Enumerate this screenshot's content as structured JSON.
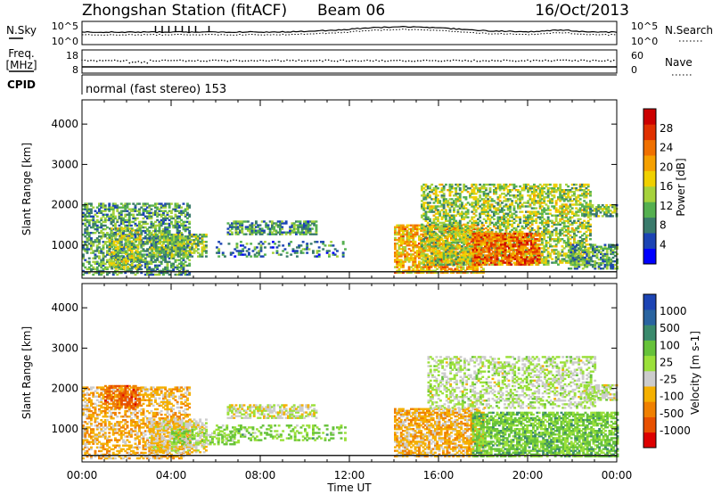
{
  "header": {
    "station": "Zhongshan Station (fitACF)",
    "beam": "Beam 06",
    "date": "16/Oct/2013"
  },
  "summary_panels": {
    "nsky_label": "N.Sky",
    "nsearch_label": "N.Search",
    "noise_ticks": [
      "10^5",
      "10^0"
    ],
    "freq_label": "Freq.",
    "freq_unit": "[MHz]",
    "freq_ticks": [
      "18",
      "8"
    ],
    "nave_label": "Nave",
    "nave_ticks": [
      "60",
      "0"
    ],
    "cpid_label": "CPID",
    "cpid_value": "normal (fast stereo) 153"
  },
  "axes": {
    "y_label": "Slant Range [km]",
    "y_ticks": [
      "4000",
      "3000",
      "2000",
      "1000"
    ],
    "x_label": "Time UT",
    "x_ticks": [
      "00:00",
      "04:00",
      "08:00",
      "12:00",
      "16:00",
      "20:00",
      "00:00"
    ]
  },
  "colors": {
    "power_scale": [
      "#0000ff",
      "#1c44b4",
      "#3a7b6c",
      "#55b050",
      "#a6d23c",
      "#f0d000",
      "#f5a000",
      "#f07000",
      "#e03000",
      "#cc0000"
    ],
    "velocity_scale": [
      "#1c44b4",
      "#2a64a0",
      "#3a8a6c",
      "#66c23a",
      "#9be03a",
      "#cccccc",
      "#f5b000",
      "#f08000",
      "#e85000",
      "#dd0000"
    ]
  },
  "chart_data": [
    {
      "type": "heatmap",
      "quantity": "Power",
      "colorbar_label": "Power [dB]",
      "colorbar_ticks": [
        "28",
        "24",
        "20",
        "16",
        "12",
        "8",
        "4"
      ],
      "range_min": 0,
      "range_max": 32,
      "xlim": [
        "00:00",
        "24:00"
      ],
      "ylim": [
        180,
        4600
      ],
      "time_unit": "hours UT",
      "regions": [
        {
          "t0": 0.0,
          "t1": 4.8,
          "r0": 250,
          "r1": 2050,
          "level": 10,
          "density": 0.55
        },
        {
          "t0": 1.2,
          "t1": 2.6,
          "r0": 400,
          "r1": 1400,
          "level": 14,
          "density": 0.6
        },
        {
          "t0": 3.0,
          "t1": 5.6,
          "r0": 700,
          "r1": 1250,
          "level": 12,
          "density": 0.7
        },
        {
          "t0": 6.5,
          "t1": 10.5,
          "r0": 1250,
          "r1": 1600,
          "level": 9,
          "density": 0.65
        },
        {
          "t0": 6.0,
          "t1": 11.8,
          "r0": 700,
          "r1": 1100,
          "level": 8,
          "density": 0.25
        },
        {
          "t0": 14.0,
          "t1": 18.0,
          "r0": 300,
          "r1": 1500,
          "level": 20,
          "density": 0.7
        },
        {
          "t0": 15.2,
          "t1": 22.8,
          "r0": 500,
          "r1": 2500,
          "level": 14,
          "density": 0.55
        },
        {
          "t0": 17.5,
          "t1": 20.5,
          "r0": 500,
          "r1": 1300,
          "level": 24,
          "density": 0.75
        },
        {
          "t0": 21.8,
          "t1": 24.0,
          "r0": 400,
          "r1": 1000,
          "level": 10,
          "density": 0.6
        },
        {
          "t0": 22.5,
          "t1": 24.0,
          "r0": 1700,
          "r1": 2000,
          "level": 12,
          "density": 0.7
        }
      ]
    },
    {
      "type": "heatmap",
      "quantity": "Velocity",
      "colorbar_label": "Velocity [m s-1]",
      "colorbar_ticks": [
        "1000",
        "500",
        "100",
        "25",
        "-25",
        "-100",
        "-500",
        "-1000"
      ],
      "range_min": -1000,
      "range_max": 1000,
      "xlim": [
        "00:00",
        "24:00"
      ],
      "ylim": [
        180,
        4600
      ],
      "time_unit": "hours UT",
      "regions": [
        {
          "t0": 0.0,
          "t1": 4.8,
          "r0": 250,
          "r1": 2050,
          "level": -300,
          "density": 0.5
        },
        {
          "t0": 1.0,
          "t1": 2.6,
          "r0": 1500,
          "r1": 2050,
          "level": -600,
          "density": 0.6
        },
        {
          "t0": 3.0,
          "t1": 5.6,
          "r0": 400,
          "r1": 1250,
          "level": -150,
          "density": 0.6
        },
        {
          "t0": 4.0,
          "t1": 7.0,
          "r0": 600,
          "r1": 1000,
          "level": 150,
          "density": 0.5
        },
        {
          "t0": 6.5,
          "t1": 10.5,
          "r0": 1250,
          "r1": 1600,
          "level": -60,
          "density": 0.6
        },
        {
          "t0": 6.0,
          "t1": 11.8,
          "r0": 700,
          "r1": 1100,
          "level": 200,
          "density": 0.3
        },
        {
          "t0": 14.0,
          "t1": 18.0,
          "r0": 300,
          "r1": 1500,
          "level": -300,
          "density": 0.7
        },
        {
          "t0": 15.5,
          "t1": 23.0,
          "r0": 1500,
          "r1": 2800,
          "level": 10,
          "density": 0.45
        },
        {
          "t0": 17.5,
          "t1": 24.0,
          "r0": 300,
          "r1": 1400,
          "level": 250,
          "density": 0.7
        },
        {
          "t0": 22.5,
          "t1": 24.0,
          "r0": 1700,
          "r1": 2100,
          "level": 0,
          "density": 0.7
        }
      ]
    }
  ]
}
